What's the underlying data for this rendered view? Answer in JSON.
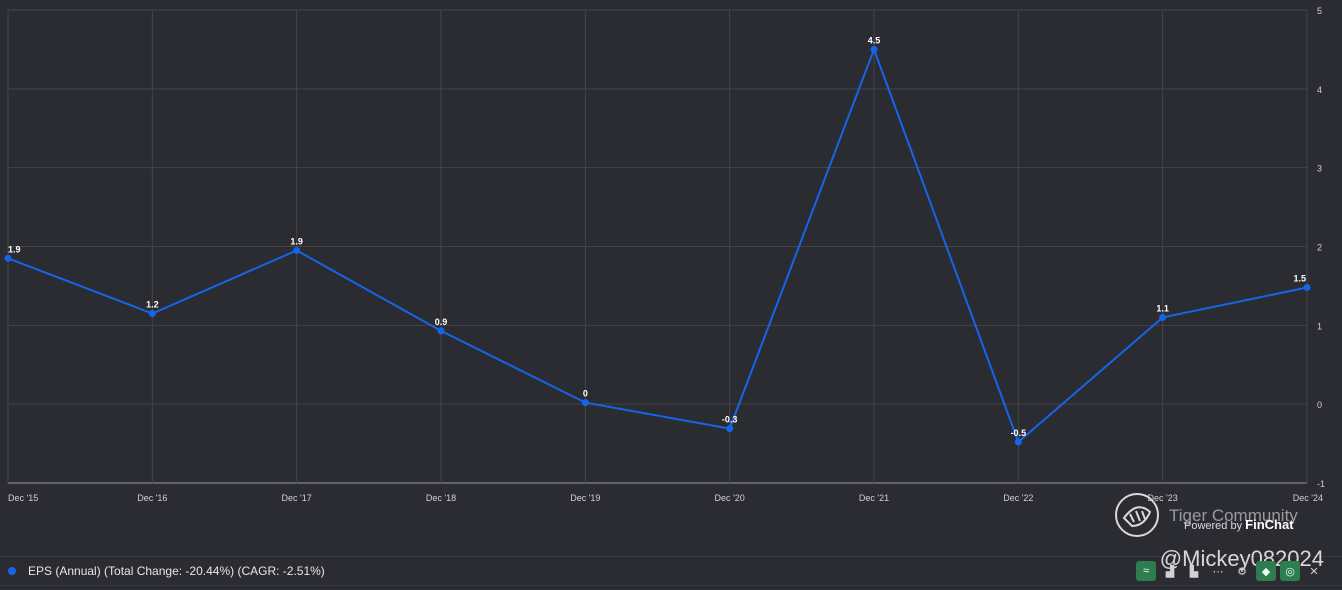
{
  "chart_data": {
    "type": "line",
    "categories": [
      "Dec '15",
      "Dec '16",
      "Dec '17",
      "Dec '18",
      "Dec '19",
      "Dec '20",
      "Dec '21",
      "Dec '22",
      "Dec '23",
      "Dec '24"
    ],
    "series": [
      {
        "name": "EPS (Annual) (Total Change: -20.44%) (CAGR: -2.51%)",
        "values": [
          1.85,
          1.15,
          1.95,
          0.93,
          0.02,
          -0.31,
          4.5,
          -0.48,
          1.1,
          1.48
        ],
        "labels": [
          "1.9",
          "1.2",
          "1.9",
          "0.9",
          "0",
          "-0.3",
          "4.5",
          "-0.5",
          "1.1",
          "1.5"
        ],
        "color": "#1565e8"
      }
    ],
    "ylim": [
      -1,
      5
    ],
    "yticks": [
      "-1",
      "0",
      "1",
      "2",
      "3",
      "4",
      "5"
    ],
    "grid": true,
    "legend": "bottom-left",
    "axis_side": "right"
  },
  "colors": {
    "background": "#2b2b32",
    "grid": "#44444c",
    "line": "#1565e8",
    "text": "#e6e6ea"
  },
  "legend": {
    "label": "EPS (Annual) (Total Change: -20.44%) (CAGR: -2.51%)"
  },
  "watermark": {
    "title": "Tiger Community",
    "powered_by": "Powered by",
    "brand": "FinChat",
    "logo_icon": "tiger-logo-icon"
  },
  "handle": "@Mickey082024",
  "toolbar": [
    {
      "icon": "chart-green-icon",
      "glyph": "≈",
      "style": "green"
    },
    {
      "icon": "bar-chart-icon",
      "glyph": "▟",
      "style": "plain"
    },
    {
      "icon": "bar-chart-alt-icon",
      "glyph": "▙",
      "style": "plain"
    },
    {
      "icon": "more-icon",
      "glyph": "⋯",
      "style": "plain"
    },
    {
      "icon": "gear-icon",
      "glyph": "⚙",
      "style": "plain"
    },
    {
      "icon": "tag-icon",
      "glyph": "◆",
      "style": "green"
    },
    {
      "icon": "eye-icon",
      "glyph": "◎",
      "style": "green"
    },
    {
      "icon": "close-icon",
      "glyph": "✕",
      "style": "plain"
    }
  ]
}
